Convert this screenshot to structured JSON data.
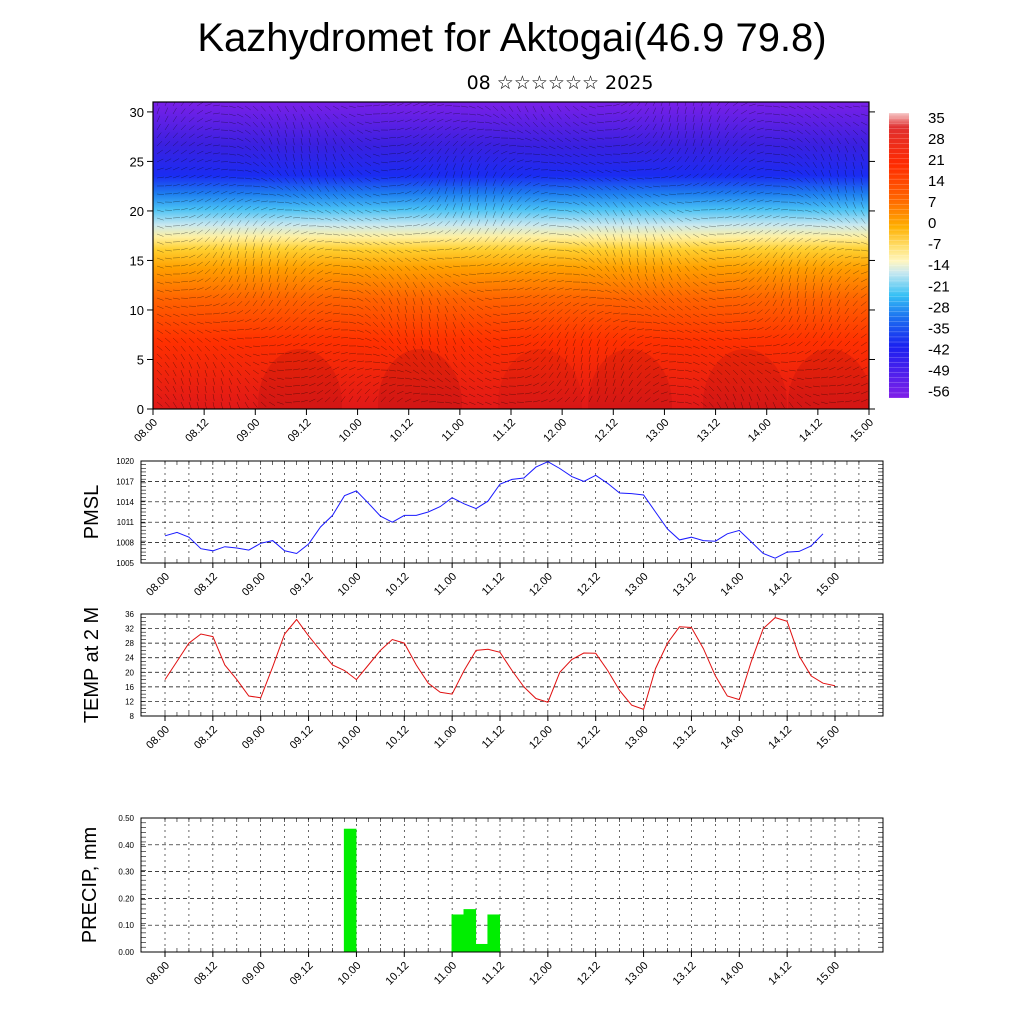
{
  "header": {
    "title": "Kazhydromet for Aktogai(46.9 79.8)",
    "subtitle": "08 ☆☆☆☆☆☆ 2025"
  },
  "colors": {
    "pmsl_line": "#1a1aff",
    "temp_line": "#e01010",
    "precip_bar": "#00ee00",
    "colormap": [
      "#7a1ee0",
      "#3a1ee0",
      "#1a2ef0",
      "#1b7af0",
      "#25c8f5",
      "#bfe6f0",
      "#fff3a0",
      "#ffd21a",
      "#ff9a00",
      "#ff5a00",
      "#ff2a00",
      "#e01010",
      "#f6b8b8"
    ]
  },
  "x_ticks": [
    "08.00",
    "08.12",
    "09.00",
    "09.12",
    "10.00",
    "10.12",
    "11.00",
    "11.12",
    "12.00",
    "12.12",
    "13.00",
    "13.12",
    "14.00",
    "14.12",
    "15.00"
  ],
  "chart_data": [
    {
      "type": "heatmap",
      "y_axis_ticks": [
        0,
        5,
        10,
        15,
        20,
        25,
        30
      ],
      "ylim": [
        0,
        31
      ],
      "colorbar": {
        "labels": [
          "35",
          "28",
          "21",
          "14",
          "7",
          "0",
          "-7",
          "-14",
          "-21",
          "-28",
          "-35",
          "-42",
          "-49",
          "-56"
        ]
      },
      "overlay": "wind vectors",
      "x_tick_labels": [
        "08.00",
        "08.12",
        "09.00",
        "09.12",
        "10.00",
        "10.12",
        "11.00",
        "11.12",
        "12.00",
        "12.12",
        "13.00",
        "13.12",
        "14.00",
        "14.12",
        "15.00"
      ]
    },
    {
      "type": "line",
      "ylabel": "PMSL",
      "ylim": [
        1005,
        1020
      ],
      "y_ticks": [
        1005,
        1008,
        1011,
        1014,
        1017,
        1020
      ],
      "x_tick_labels": [
        "08.00",
        "08.12",
        "09.00",
        "09.12",
        "10.00",
        "10.12",
        "11.00",
        "11.12",
        "12.00",
        "12.12",
        "13.00",
        "13.12",
        "14.00",
        "14.12",
        "15.00"
      ],
      "x_steps": 56,
      "values": [
        1009,
        1009.5,
        1008.8,
        1007.1,
        1006.8,
        1007.4,
        1007.2,
        1006.9,
        1007.9,
        1008.3,
        1006.8,
        1006.4,
        1007.8,
        1010.3,
        1012.0,
        1014.9,
        1015.6,
        1013.8,
        1011.9,
        1011.0,
        1012.0,
        1012.0,
        1012.5,
        1013.3,
        1014.6,
        1013.7,
        1013.0,
        1014.1,
        1016.6,
        1017.3,
        1017.5,
        1019.1,
        1019.9,
        1018.9,
        1017.7,
        1017.0,
        1017.9,
        1016.7,
        1015.3,
        1015.2,
        1015.0,
        1012.5,
        1010.0,
        1008.4,
        1008.8,
        1008.3,
        1008.2,
        1009.3,
        1009.8,
        1008.1,
        1006.4,
        1005.7,
        1006.6,
        1006.7,
        1007.5,
        1009.3
      ]
    },
    {
      "type": "line",
      "ylabel": "TEMP at 2 M",
      "ylim": [
        8,
        36
      ],
      "y_ticks": [
        8,
        12,
        16,
        20,
        24,
        28,
        32,
        36
      ],
      "x_tick_labels": [
        "08.00",
        "08.12",
        "09.00",
        "09.12",
        "10.00",
        "10.12",
        "11.00",
        "11.12",
        "12.00",
        "12.12",
        "13.00",
        "13.12",
        "14.00",
        "14.12",
        "15.00"
      ],
      "x_steps": 56,
      "values": [
        18.0,
        23.0,
        28.0,
        30.5,
        29.8,
        22.0,
        18.0,
        13.5,
        13.0,
        21.5,
        30.5,
        34.5,
        30.0,
        26.0,
        22.0,
        20.5,
        18.0,
        22.0,
        26.0,
        29.0,
        28.0,
        22.0,
        17.0,
        14.5,
        14.0,
        20.5,
        26.0,
        26.3,
        25.5,
        20.5,
        16.0,
        12.8,
        11.8,
        20.0,
        23.5,
        25.3,
        25.2,
        20.5,
        15.0,
        11.0,
        9.8,
        21.0,
        28.0,
        32.5,
        32.3,
        26.5,
        19.0,
        13.5,
        12.5,
        23.0,
        32.0,
        35.0,
        34.0,
        24.5,
        19.0,
        17.0,
        16.3
      ]
    },
    {
      "type": "bar",
      "ylabel": "PRECIP, mm",
      "ylim": [
        0,
        0.5
      ],
      "y_tick_labels": [
        "0.00",
        "0.10",
        "0.20",
        "0.30",
        "0.40",
        "0.50"
      ],
      "x_tick_labels": [
        "08.00",
        "08.12",
        "09.00",
        "09.12",
        "10.00",
        "10.12",
        "11.00",
        "11.12",
        "12.00",
        "12.12",
        "13.00",
        "13.12",
        "14.00",
        "14.12",
        "15.00"
      ],
      "x_steps": 56,
      "bars": [
        {
          "step": 15,
          "value": 0.46
        },
        {
          "step": 24,
          "value": 0.14
        },
        {
          "step": 25,
          "value": 0.16
        },
        {
          "step": 26,
          "value": 0.03
        },
        {
          "step": 27,
          "value": 0.14
        }
      ]
    }
  ]
}
